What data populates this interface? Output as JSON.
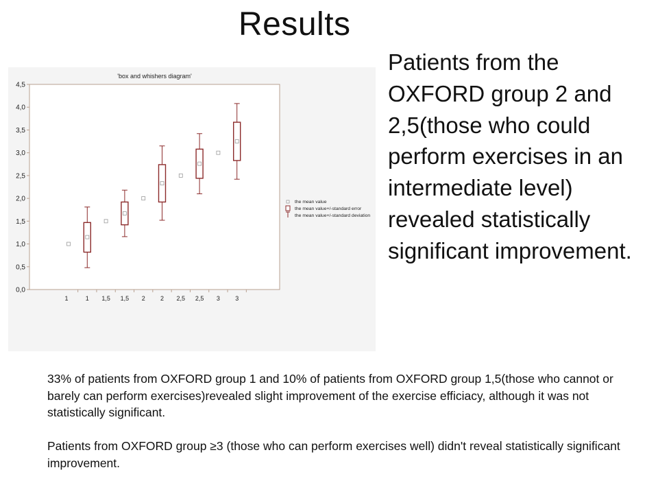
{
  "slide": {
    "title": "Results",
    "side_text": "Patients from the OXFORD group 2 and 2,5(those who could perform exercises in an intermediate level) revealed statistically significant improvement.",
    "paragraph_1": "33% of patients from OXFORD group 1 and 10% of patients from OXFORD group 1,5(those who cannot or barely can perform exercises)revealed slight improvement of the exercise efficiacy, although it was not statistically significant.",
    "paragraph_2": "Patients from OXFORD group ≥3 (those who can perform exercises well) didn't reveal statistically significant improvement."
  },
  "chart_data": {
    "type": "box",
    "title": "'box and whishers diagram'",
    "xlabel": "",
    "ylabel": "",
    "ylim": [
      0,
      4.5
    ],
    "yticks": [
      "0,0",
      "0,5",
      "1,0",
      "1,5",
      "2,0",
      "2,5",
      "3,0",
      "3,5",
      "4,0",
      "4,5"
    ],
    "categories": [
      "1",
      "1",
      "1,5",
      "1,5",
      "2",
      "2",
      "2,5",
      "2,5",
      "3",
      "3"
    ],
    "points": [
      {
        "category": "1",
        "mean": 1.0
      },
      {
        "category": "1",
        "mean": 1.15,
        "se_low": 0.82,
        "se_high": 1.47,
        "sd_low": 0.48,
        "sd_high": 1.81
      },
      {
        "category": "1,5",
        "mean": 1.5
      },
      {
        "category": "1,5",
        "mean": 1.67,
        "se_low": 1.42,
        "se_high": 1.92,
        "sd_low": 1.16,
        "sd_high": 2.18
      },
      {
        "category": "2",
        "mean": 2.0
      },
      {
        "category": "2",
        "mean": 2.33,
        "se_low": 1.92,
        "se_high": 2.74,
        "sd_low": 1.52,
        "sd_high": 3.15
      },
      {
        "category": "2,5",
        "mean": 2.5
      },
      {
        "category": "2,5",
        "mean": 2.76,
        "se_low": 2.44,
        "se_high": 3.08,
        "sd_low": 2.1,
        "sd_high": 3.42
      },
      {
        "category": "3",
        "mean": 3.0
      },
      {
        "category": "3",
        "mean": 3.25,
        "se_low": 2.83,
        "se_high": 3.67,
        "sd_low": 2.42,
        "sd_high": 4.08
      }
    ],
    "legend_position": "right",
    "legend": [
      "the mean value",
      "the mean value+/-standard error",
      "the mean value+/-standard deviation"
    ],
    "grid": false,
    "colors": {
      "box": "#8b2a2a",
      "marker": "#9a9a9a",
      "axis": "#b8a090"
    }
  }
}
